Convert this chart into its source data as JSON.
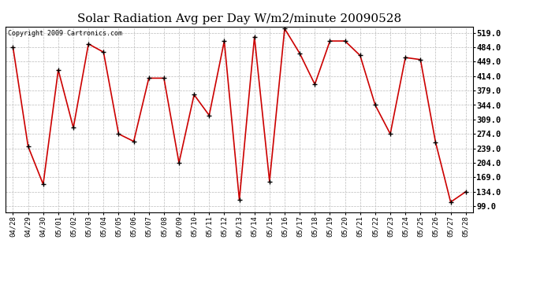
{
  "title": "Solar Radiation Avg per Day W/m2/minute 20090528",
  "copyright": "Copyright 2009 Cartronics.com",
  "line_color": "#cc0000",
  "marker_color": "#000000",
  "background_color": "#ffffff",
  "plot_bg_color": "#ffffff",
  "grid_color": "#bbbbbb",
  "yticks": [
    99.0,
    134.0,
    169.0,
    204.0,
    239.0,
    274.0,
    309.0,
    344.0,
    379.0,
    414.0,
    449.0,
    484.0,
    519.0
  ],
  "ylim": [
    84.0,
    534.0
  ],
  "dates": [
    "04/28",
    "04/29",
    "04/30",
    "05/01",
    "05/02",
    "05/03",
    "05/04",
    "05/05",
    "05/06",
    "05/07",
    "05/08",
    "05/09",
    "05/10",
    "05/11",
    "05/12",
    "05/13",
    "05/14",
    "05/15",
    "05/16",
    "05/17",
    "05/18",
    "05/19",
    "05/20",
    "05/21",
    "05/22",
    "05/23",
    "05/24",
    "05/25",
    "05/26",
    "05/27",
    "05/28"
  ],
  "values": [
    484,
    244,
    152,
    429,
    289,
    492,
    472,
    274,
    256,
    409,
    409,
    204,
    369,
    319,
    499,
    114,
    509,
    159,
    529,
    469,
    394,
    499,
    499,
    464,
    344,
    274,
    459,
    454,
    254,
    109,
    134
  ]
}
